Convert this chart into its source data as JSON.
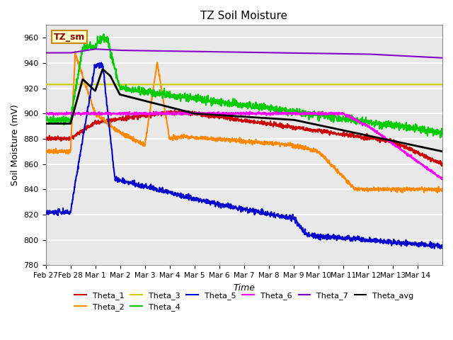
{
  "title": "TZ Soil Moisture",
  "xlabel": "Time",
  "ylabel": "Soil Moisture (mV)",
  "ylim": [
    780,
    970
  ],
  "yticks": [
    780,
    800,
    820,
    840,
    860,
    880,
    900,
    920,
    940,
    960
  ],
  "background_color": "#ffffff",
  "plot_bg_color": "#e8e8e8",
  "grid_color": "#ffffff",
  "label_box": "TZ_sm",
  "legend_entries": [
    "Theta_1",
    "Theta_2",
    "Theta_3",
    "Theta_4",
    "Theta_5",
    "Theta_6",
    "Theta_7",
    "Theta_avg"
  ],
  "colors": {
    "Theta_1": "#cc0000",
    "Theta_2": "#ff8800",
    "Theta_3": "#cccc00",
    "Theta_4": "#00cc00",
    "Theta_5": "#0000cc",
    "Theta_6": "#ff00ff",
    "Theta_7": "#8800cc",
    "Theta_avg": "#000000"
  },
  "date_labels": [
    "Feb 27",
    "Feb 28",
    "Mar 1",
    "Mar 2",
    "Mar 3",
    "Mar 4",
    "Mar 5",
    "Mar 6",
    "Mar 7",
    "Mar 8",
    "Mar 9",
    "Mar 10",
    "Mar 11",
    "Mar 12",
    "Mar 13",
    "Mar 14"
  ],
  "num_points": 1600
}
